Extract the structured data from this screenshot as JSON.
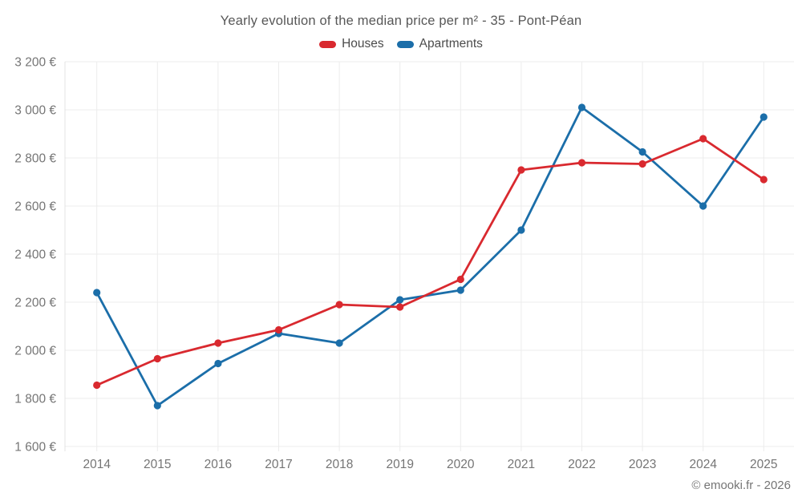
{
  "header": {
    "title": "Yearly evolution of the median price per m² - 35 - Pont-Péan"
  },
  "legend": {
    "items": [
      {
        "label": "Houses",
        "color": "#d9292f"
      },
      {
        "label": "Apartments",
        "color": "#1b6ea9"
      }
    ]
  },
  "footer": {
    "credit": "© emooki.fr - 2026"
  },
  "chart_data": {
    "type": "line",
    "title": "Yearly evolution of the median price per m² - 35 - Pont-Péan",
    "x": [
      2014,
      2015,
      2016,
      2017,
      2018,
      2019,
      2020,
      2021,
      2022,
      2023,
      2024,
      2025
    ],
    "series": [
      {
        "name": "Houses",
        "color": "#d9292f",
        "values": [
          1855,
          1965,
          2030,
          2085,
          2190,
          2180,
          2295,
          2750,
          2780,
          2775,
          2880,
          2710
        ]
      },
      {
        "name": "Apartments",
        "color": "#1b6ea9",
        "values": [
          2240,
          1770,
          1945,
          2070,
          2030,
          2210,
          2250,
          2500,
          3010,
          2825,
          2600,
          2970
        ]
      }
    ],
    "xlabel": "",
    "ylabel": "",
    "ylim": [
      1600,
      3200
    ],
    "ytick_step": 200,
    "ytick_suffix": " €",
    "thousands_separator": " ",
    "grid": true,
    "legend_position": "top",
    "colors": {
      "grid": "#ececec",
      "axis": "#e3e3e3",
      "tick_label": "#757575"
    }
  }
}
